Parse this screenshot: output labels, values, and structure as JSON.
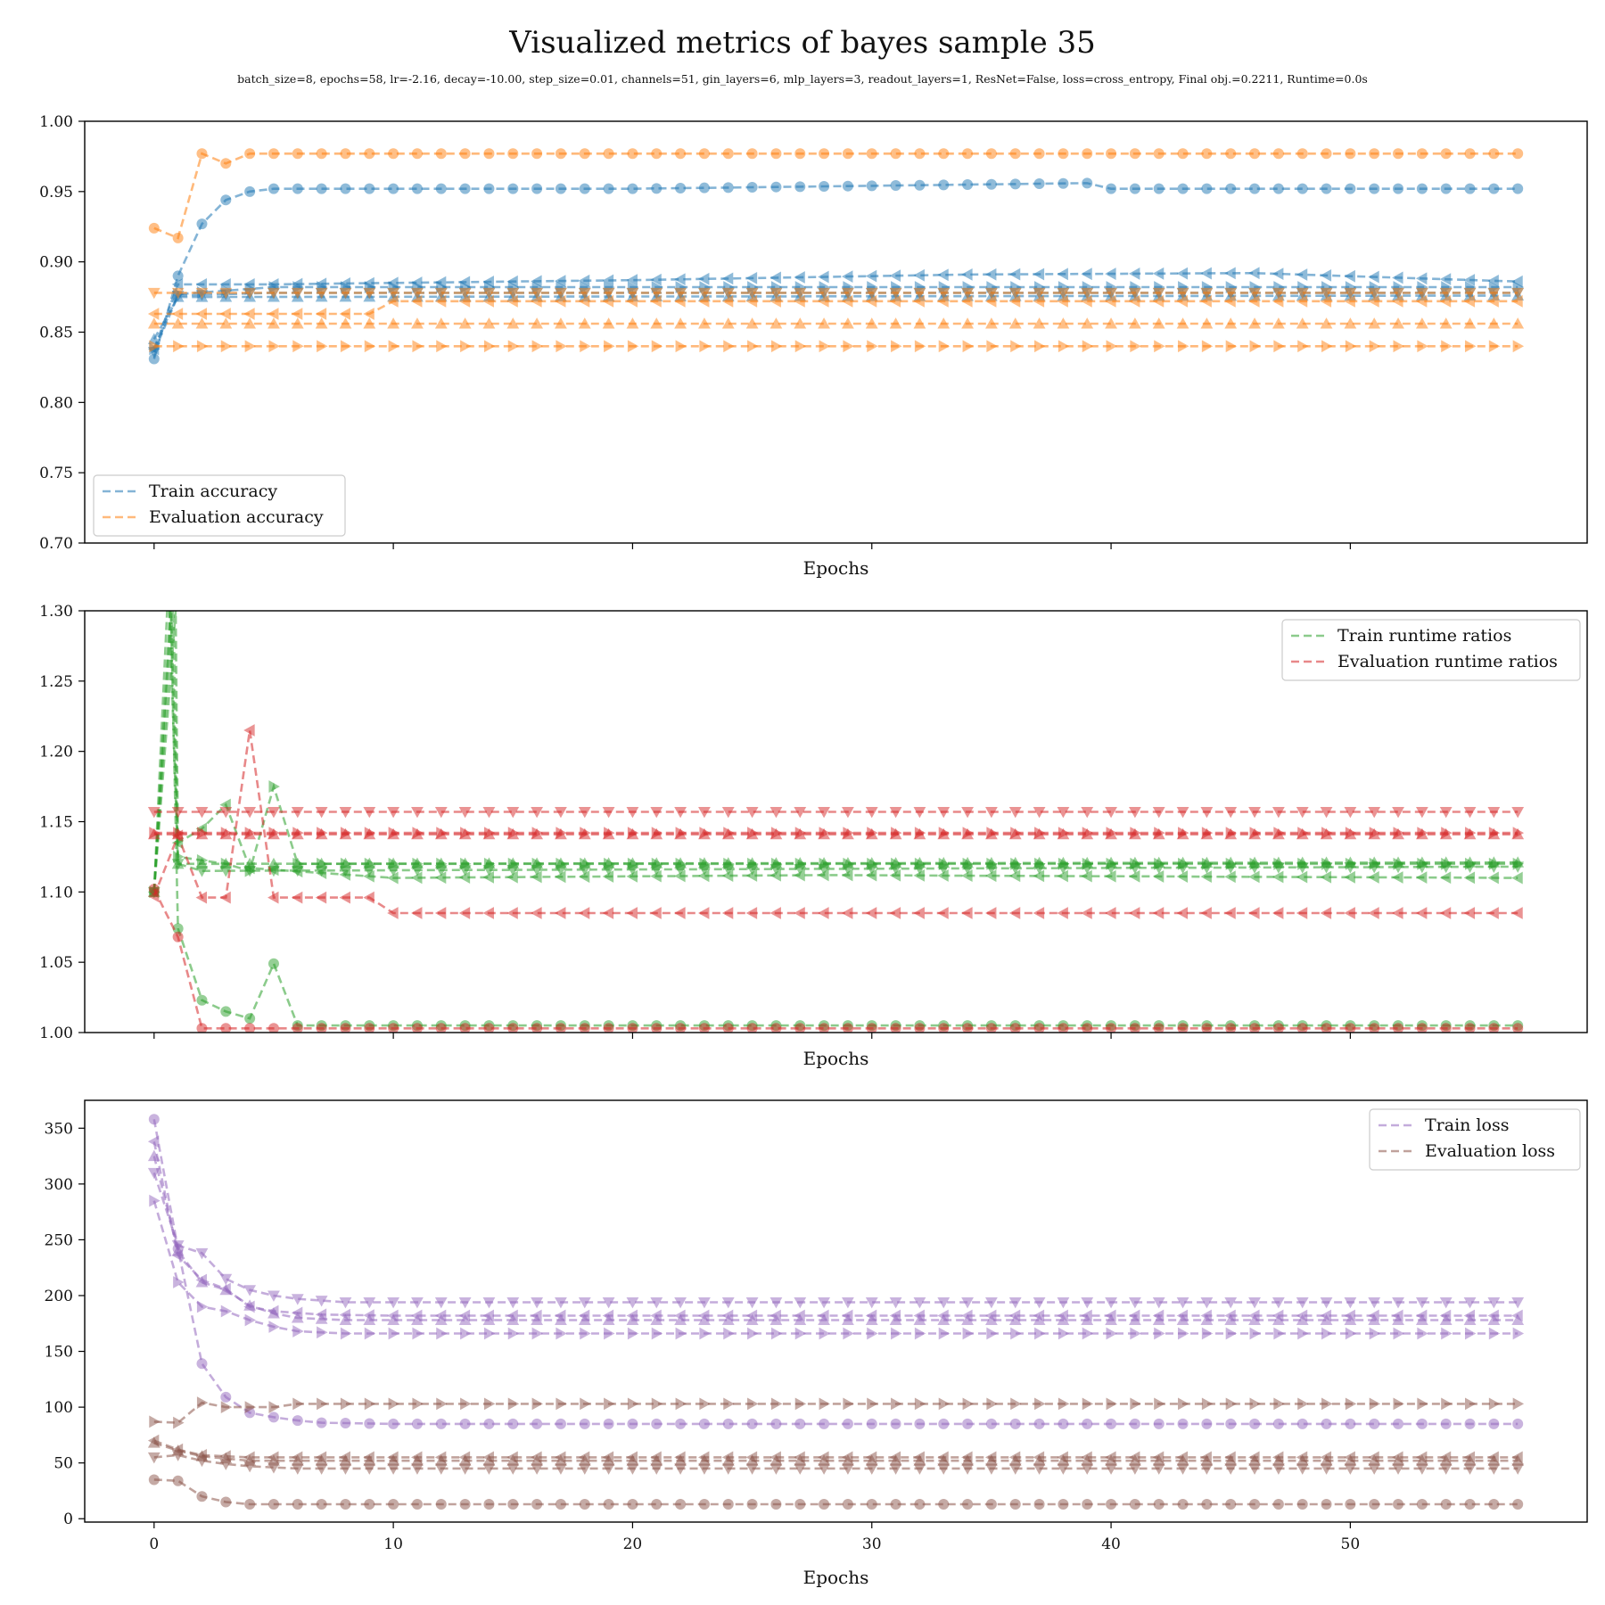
{
  "title": "Visualized metrics of bayes sample 35",
  "subtitle": "batch_size=8, epochs=58, lr=-2.16, decay=-10.00, step_size=0.01, channels=51, gin_layers=6, mlp_layers=3, readout_layers=1, ResNet=False, loss=cross_entropy, Final obj.=0.2211, Runtime=0.0s",
  "colors": {
    "blue": "#1f77b4",
    "orange": "#ff7f0e",
    "green": "#2ca02c",
    "red": "#d62728",
    "purple": "#9467bd",
    "brown": "#8c564b"
  },
  "chart_data": [
    {
      "type": "line",
      "xlabel": "Epochs",
      "xlim": [
        -2.9,
        59.9
      ],
      "ylim": [
        0.7,
        1.0
      ],
      "yticks": [
        "0.70",
        "0.75",
        "0.80",
        "0.85",
        "0.90",
        "0.95",
        "1.00"
      ],
      "xticks": [],
      "legend_position": "lower-left",
      "legend": [
        {
          "label": "Train accuracy",
          "color": "#1f77b4"
        },
        {
          "label": "Evaluation accuracy",
          "color": "#ff7f0e"
        }
      ],
      "series": [
        {
          "color": "#1f77b4",
          "marker": "circle",
          "keys": [
            [
              0,
              0.831
            ],
            [
              1,
              0.89
            ],
            [
              2,
              0.927
            ],
            [
              3,
              0.944
            ],
            [
              4,
              0.95
            ],
            [
              5,
              0.952
            ],
            [
              10,
              0.952
            ],
            [
              20,
              0.952
            ],
            [
              39,
              0.956
            ],
            [
              40,
              0.952
            ],
            [
              57,
              0.952
            ]
          ]
        },
        {
          "color": "#1f77b4",
          "marker": "triangle-left",
          "keys": [
            [
              0,
              0.838
            ],
            [
              1,
              0.884
            ],
            [
              5,
              0.884
            ],
            [
              20,
              0.887
            ],
            [
              34,
              0.891
            ],
            [
              46,
              0.892
            ],
            [
              57,
              0.886
            ]
          ]
        },
        {
          "color": "#1f77b4",
          "marker": "triangle-right",
          "keys": [
            [
              0,
              0.838
            ],
            [
              1,
              0.877
            ],
            [
              5,
              0.882
            ],
            [
              57,
              0.882
            ]
          ]
        },
        {
          "color": "#1f77b4",
          "marker": "triangle-down",
          "keys": [
            [
              0,
              0.836
            ],
            [
              1,
              0.876
            ],
            [
              5,
              0.878
            ],
            [
              57,
              0.878
            ]
          ]
        },
        {
          "color": "#1f77b4",
          "marker": "triangle-up",
          "keys": [
            [
              0,
              0.845
            ],
            [
              1,
              0.875
            ],
            [
              57,
              0.876
            ]
          ]
        },
        {
          "color": "#ff7f0e",
          "marker": "circle",
          "keys": [
            [
              0,
              0.924
            ],
            [
              1,
              0.917
            ],
            [
              2,
              0.977
            ],
            [
              3,
              0.97
            ],
            [
              4,
              0.977
            ],
            [
              57,
              0.977
            ]
          ]
        },
        {
          "color": "#ff7f0e",
          "marker": "triangle-down",
          "keys": [
            [
              0,
              0.878
            ],
            [
              57,
              0.878
            ]
          ]
        },
        {
          "color": "#ff7f0e",
          "marker": "triangle-left",
          "keys": [
            [
              0,
              0.863
            ],
            [
              9,
              0.863
            ],
            [
              10,
              0.872
            ],
            [
              57,
              0.872
            ]
          ]
        },
        {
          "color": "#ff7f0e",
          "marker": "triangle-up",
          "keys": [
            [
              0,
              0.856
            ],
            [
              57,
              0.856
            ]
          ]
        },
        {
          "color": "#ff7f0e",
          "marker": "triangle-right",
          "keys": [
            [
              0,
              0.84
            ],
            [
              57,
              0.84
            ]
          ]
        }
      ]
    },
    {
      "type": "line",
      "xlabel": "Epochs",
      "xlim": [
        -2.9,
        59.9
      ],
      "ylim": [
        1.0,
        1.3
      ],
      "yticks": [
        "1.00",
        "1.05",
        "1.10",
        "1.15",
        "1.20",
        "1.25",
        "1.30"
      ],
      "xticks": [],
      "legend_position": "upper-right",
      "legend": [
        {
          "label": "Train runtime ratios",
          "color": "#2ca02c"
        },
        {
          "label": "Evaluation runtime ratios",
          "color": "#d62728"
        }
      ],
      "series": [
        {
          "color": "#2ca02c",
          "marker": "triangle-up",
          "keys": [
            [
              0,
              1.1
            ],
            [
              0.6,
              1.32
            ],
            [
              1,
              1.12
            ],
            [
              2,
              1.12
            ],
            [
              57,
              1.121
            ]
          ]
        },
        {
          "color": "#2ca02c",
          "marker": "triangle-right",
          "keys": [
            [
              0,
              1.1
            ],
            [
              0.7,
              1.31
            ],
            [
              1,
              1.125
            ],
            [
              3,
              1.12
            ],
            [
              4,
              1.115
            ],
            [
              5,
              1.175
            ],
            [
              6,
              1.12
            ],
            [
              57,
              1.12
            ]
          ]
        },
        {
          "color": "#2ca02c",
          "marker": "triangle-down",
          "keys": [
            [
              0,
              1.1
            ],
            [
              0.8,
              1.305
            ],
            [
              1,
              1.12
            ],
            [
              2,
              1.115
            ],
            [
              57,
              1.118
            ]
          ]
        },
        {
          "color": "#2ca02c",
          "marker": "triangle-left",
          "keys": [
            [
              0,
              1.1
            ],
            [
              0.9,
              1.3
            ],
            [
              1,
              1.135
            ],
            [
              2,
              1.145
            ],
            [
              3,
              1.162
            ],
            [
              4,
              1.117
            ],
            [
              10,
              1.11
            ],
            [
              28,
              1.112
            ],
            [
              57,
              1.11
            ]
          ]
        },
        {
          "color": "#2ca02c",
          "marker": "circle",
          "keys": [
            [
              0,
              1.1
            ],
            [
              0.7,
              1.3
            ],
            [
              1,
              1.074
            ],
            [
              2,
              1.023
            ],
            [
              3,
              1.015
            ],
            [
              4,
              1.01
            ],
            [
              5,
              1.049
            ],
            [
              6,
              1.005
            ],
            [
              57,
              1.005
            ]
          ]
        },
        {
          "color": "#d62728",
          "marker": "triangle-down",
          "keys": [
            [
              0,
              1.157
            ],
            [
              57,
              1.157
            ]
          ]
        },
        {
          "color": "#d62728",
          "marker": "triangle-right",
          "keys": [
            [
              0,
              1.142
            ],
            [
              57,
              1.142
            ]
          ]
        },
        {
          "color": "#d62728",
          "marker": "triangle-up",
          "keys": [
            [
              0,
              1.141
            ],
            [
              57,
              1.141
            ]
          ]
        },
        {
          "color": "#d62728",
          "marker": "triangle-left",
          "keys": [
            [
              0,
              1.097
            ],
            [
              1,
              1.14
            ],
            [
              2,
              1.096
            ],
            [
              3,
              1.096
            ],
            [
              4,
              1.215
            ],
            [
              5,
              1.096
            ],
            [
              9,
              1.096
            ],
            [
              10,
              1.085
            ],
            [
              57,
              1.085
            ]
          ]
        },
        {
          "color": "#d62728",
          "marker": "circle",
          "keys": [
            [
              0,
              1.102
            ],
            [
              1,
              1.068
            ],
            [
              2,
              1.003
            ],
            [
              57,
              1.003
            ]
          ]
        }
      ]
    },
    {
      "type": "line",
      "xlabel": "Epochs",
      "xlim": [
        -2.9,
        59.9
      ],
      "ylim": [
        -3,
        375
      ],
      "yticks": [
        "0",
        "50",
        "100",
        "150",
        "200",
        "250",
        "300",
        "350"
      ],
      "ytick_values": [
        0,
        50,
        100,
        150,
        200,
        250,
        300,
        350
      ],
      "xticks": [
        "0",
        "10",
        "20",
        "30",
        "40",
        "50"
      ],
      "xtick_values": [
        0,
        10,
        20,
        30,
        40,
        50
      ],
      "legend_position": "upper-right",
      "legend": [
        {
          "label": "Train loss",
          "color": "#9467bd"
        },
        {
          "label": "Evaluation loss",
          "color": "#8c564b"
        }
      ],
      "series": [
        {
          "color": "#9467bd",
          "marker": "circle",
          "keys": [
            [
              0,
              358
            ],
            [
              1,
              242
            ],
            [
              2,
              139
            ],
            [
              3,
              109
            ],
            [
              4,
              95
            ],
            [
              5,
              91
            ],
            [
              6,
              88
            ],
            [
              7,
              86
            ],
            [
              10,
              85
            ],
            [
              57,
              85
            ]
          ]
        },
        {
          "color": "#9467bd",
          "marker": "triangle-down",
          "keys": [
            [
              0,
              310
            ],
            [
              1,
              245
            ],
            [
              2,
              238
            ],
            [
              3,
              215
            ],
            [
              4,
              205
            ],
            [
              5,
              200
            ],
            [
              6,
              197
            ],
            [
              8,
              194
            ],
            [
              57,
              194
            ]
          ]
        },
        {
          "color": "#9467bd",
          "marker": "triangle-up",
          "keys": [
            [
              0,
              325
            ],
            [
              1,
              240
            ],
            [
              2,
              212
            ],
            [
              3,
              205
            ],
            [
              4,
              191
            ],
            [
              5,
              184
            ],
            [
              6,
              180
            ],
            [
              8,
              178
            ],
            [
              57,
              178
            ]
          ]
        },
        {
          "color": "#9467bd",
          "marker": "triangle-left",
          "keys": [
            [
              0,
              338
            ],
            [
              1,
              236
            ],
            [
              2,
              214
            ],
            [
              3,
              206
            ],
            [
              4,
              190
            ],
            [
              5,
              186
            ],
            [
              7,
              183
            ],
            [
              10,
              182
            ],
            [
              57,
              182
            ]
          ]
        },
        {
          "color": "#9467bd",
          "marker": "triangle-right",
          "keys": [
            [
              0,
              285
            ],
            [
              1,
              212
            ],
            [
              2,
              190
            ],
            [
              3,
              186
            ],
            [
              4,
              178
            ],
            [
              5,
              172
            ],
            [
              6,
              168
            ],
            [
              8,
              166
            ],
            [
              57,
              166
            ]
          ]
        },
        {
          "color": "#8c564b",
          "marker": "triangle-right",
          "keys": [
            [
              0,
              87
            ],
            [
              1,
              86
            ],
            [
              2,
              104
            ],
            [
              3,
              100
            ],
            [
              4,
              100
            ],
            [
              5,
              100
            ],
            [
              6,
              103
            ],
            [
              57,
              103
            ]
          ]
        },
        {
          "color": "#8c564b",
          "marker": "triangle-left",
          "keys": [
            [
              0,
              70
            ],
            [
              1,
              62
            ],
            [
              2,
              57
            ],
            [
              3,
              56
            ],
            [
              4,
              55
            ],
            [
              57,
              55
            ]
          ]
        },
        {
          "color": "#8c564b",
          "marker": "triangle-up",
          "keys": [
            [
              0,
              68
            ],
            [
              1,
              61
            ],
            [
              2,
              56
            ],
            [
              3,
              54
            ],
            [
              4,
              52
            ],
            [
              57,
              52
            ]
          ]
        },
        {
          "color": "#8c564b",
          "marker": "triangle-down",
          "keys": [
            [
              0,
              55
            ],
            [
              1,
              57
            ],
            [
              2,
              52
            ],
            [
              3,
              49
            ],
            [
              4,
              47
            ],
            [
              5,
              46
            ],
            [
              6,
              45
            ],
            [
              57,
              45
            ]
          ]
        },
        {
          "color": "#8c564b",
          "marker": "circle",
          "keys": [
            [
              0,
              35
            ],
            [
              1,
              34
            ],
            [
              2,
              20
            ],
            [
              3,
              15
            ],
            [
              4,
              13
            ],
            [
              57,
              13
            ]
          ]
        }
      ]
    }
  ]
}
